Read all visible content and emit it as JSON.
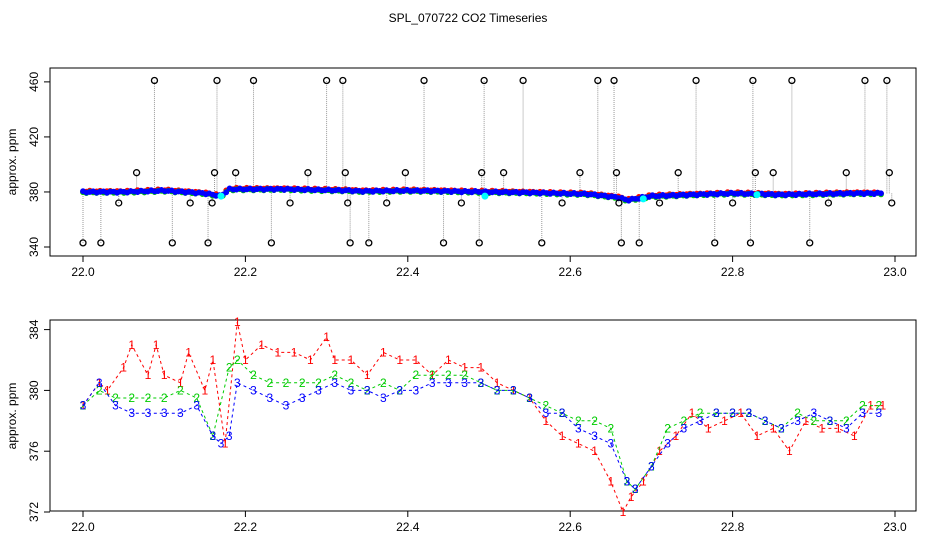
{
  "title": "SPL_070722  CO2 Timeseries",
  "colors": {
    "r1": "#ff0000",
    "r2": "#00cc00",
    "r3": "#0000ff",
    "grey": "#999999",
    "cyan": "#00ffff",
    "text": "#000000"
  },
  "chart_data": [
    {
      "type": "scatter",
      "ylabel": "approx. ppm",
      "xlabel": "",
      "xlim": [
        22.0,
        23.0
      ],
      "ylim": [
        340,
        465
      ],
      "xticks": [
        "22.0",
        "22.2",
        "22.4",
        "22.6",
        "22.8",
        "23.0"
      ],
      "yticks": [
        "340",
        "380",
        "420",
        "460"
      ],
      "grid": false,
      "baseline": {
        "x": [
          22.0,
          22.05,
          22.1,
          22.15,
          22.17,
          22.18,
          22.25,
          22.33,
          22.34,
          22.4,
          22.5,
          22.55,
          22.62,
          22.66,
          22.67,
          22.7,
          22.8,
          22.86,
          22.9,
          22.95,
          22.99
        ],
        "y": [
          380,
          380,
          381,
          379,
          377,
          382,
          382,
          381,
          380.5,
          381,
          380,
          379.5,
          378.5,
          376,
          374,
          377,
          379,
          378,
          378.5,
          379,
          379
        ]
      },
      "spikes": {
        "x": [
          22.0,
          22.022,
          22.044,
          22.066,
          22.088,
          22.11,
          22.132,
          22.154,
          22.159,
          22.162,
          22.165,
          22.188,
          22.21,
          22.232,
          22.255,
          22.277,
          22.3,
          22.32,
          22.323,
          22.326,
          22.329,
          22.352,
          22.374,
          22.397,
          22.42,
          22.444,
          22.466,
          22.488,
          22.491,
          22.494,
          22.518,
          22.542,
          22.565,
          22.59,
          22.612,
          22.634,
          22.654,
          22.657,
          22.66,
          22.663,
          22.685,
          22.71,
          22.733,
          22.755,
          22.778,
          22.8,
          22.822,
          22.825,
          22.828,
          22.85,
          22.873,
          22.895,
          22.918,
          22.94,
          22.963,
          22.99,
          22.993,
          22.996
        ],
        "y": [
          343,
          343,
          372,
          394,
          461,
          343,
          372,
          343,
          372,
          394,
          461,
          394,
          461,
          343,
          372,
          394,
          461,
          461,
          394,
          372,
          343,
          343,
          372,
          394,
          461,
          343,
          372,
          343,
          394,
          461,
          394,
          461,
          343,
          372,
          394,
          461,
          461,
          394,
          372,
          343,
          343,
          372,
          394,
          461,
          343,
          372,
          343,
          461,
          394,
          394,
          461,
          343,
          372,
          394,
          461,
          461,
          394,
          372
        ]
      },
      "cyan_points": {
        "x": [
          22.17,
          22.495,
          22.69,
          22.83
        ],
        "y": [
          377,
          377,
          375,
          378
        ]
      }
    },
    {
      "type": "scatter",
      "ylabel": "approx. ppm",
      "xlabel": "",
      "xlim": [
        22.0,
        23.0
      ],
      "ylim": [
        372,
        384.5
      ],
      "xticks": [
        "22.0",
        "22.2",
        "22.4",
        "22.6",
        "22.8",
        "23.0"
      ],
      "yticks": [
        "372",
        "376",
        "380",
        "384"
      ],
      "grid": false,
      "series": [
        {
          "marker": "1",
          "x": [
            22.0,
            22.02,
            22.03,
            22.05,
            22.06,
            22.08,
            22.09,
            22.1,
            22.12,
            22.13,
            22.15,
            22.16,
            22.175,
            22.19,
            22.2,
            22.22,
            22.24,
            22.26,
            22.28,
            22.3,
            22.31,
            22.33,
            22.35,
            22.37,
            22.39,
            22.41,
            22.43,
            22.45,
            22.47,
            22.49,
            22.51,
            22.53,
            22.55,
            22.57,
            22.59,
            22.61,
            22.63,
            22.65,
            22.665,
            22.675,
            22.69,
            22.71,
            22.73,
            22.75,
            22.77,
            22.79,
            22.81,
            22.83,
            22.85,
            22.87,
            22.89,
            22.91,
            22.93,
            22.95,
            22.97,
            22.985
          ],
          "y": [
            379,
            380.5,
            380,
            381.5,
            383,
            381,
            383,
            381,
            380.5,
            382.5,
            380,
            382,
            376.5,
            384.5,
            382,
            383,
            382.5,
            382.5,
            382,
            383.5,
            382,
            382,
            381,
            382.5,
            382,
            382,
            381,
            382,
            381.5,
            381.5,
            380.5,
            380,
            379.5,
            378,
            377,
            376.5,
            376,
            374,
            372,
            373,
            374,
            376,
            377,
            378.5,
            377.5,
            378,
            378.5,
            377,
            377.5,
            376,
            378,
            377.5,
            377.5,
            377,
            379,
            379
          ]
        },
        {
          "marker": "2",
          "x": [
            22.0,
            22.02,
            22.04,
            22.06,
            22.08,
            22.1,
            22.12,
            22.14,
            22.16,
            22.18,
            22.19,
            22.21,
            22.23,
            22.25,
            22.27,
            22.29,
            22.31,
            22.33,
            22.35,
            22.37,
            22.39,
            22.41,
            22.43,
            22.45,
            22.47,
            22.49,
            22.51,
            22.53,
            22.55,
            22.57,
            22.59,
            22.61,
            22.63,
            22.65,
            22.67,
            22.68,
            22.7,
            22.72,
            22.74,
            22.76,
            22.78,
            22.8,
            22.82,
            22.84,
            22.86,
            22.88,
            22.9,
            22.92,
            22.94,
            22.96,
            22.98
          ],
          "y": [
            379,
            380,
            379.5,
            379.5,
            379.5,
            379.5,
            380,
            379.5,
            377,
            381.5,
            382,
            381,
            380.5,
            380.5,
            380.5,
            380.5,
            381,
            380.5,
            380,
            380.5,
            380,
            381,
            381,
            381,
            381,
            380.5,
            380,
            380,
            379.5,
            379,
            378.5,
            378,
            378,
            377.5,
            374,
            373.5,
            375,
            377.5,
            378,
            378.5,
            378.5,
            378.5,
            378.5,
            378,
            377.5,
            378.5,
            378,
            378,
            378,
            379,
            379
          ]
        },
        {
          "marker": "3",
          "x": [
            22.0,
            22.02,
            22.04,
            22.06,
            22.08,
            22.1,
            22.12,
            22.14,
            22.16,
            22.17,
            22.18,
            22.19,
            22.21,
            22.23,
            22.25,
            22.27,
            22.29,
            22.31,
            22.33,
            22.35,
            22.37,
            22.39,
            22.41,
            22.43,
            22.45,
            22.47,
            22.49,
            22.51,
            22.53,
            22.55,
            22.57,
            22.59,
            22.61,
            22.63,
            22.65,
            22.67,
            22.68,
            22.7,
            22.72,
            22.74,
            22.76,
            22.78,
            22.8,
            22.82,
            22.84,
            22.86,
            22.88,
            22.9,
            22.92,
            22.94,
            22.96,
            22.98
          ],
          "y": [
            379,
            380.5,
            379,
            378.5,
            378.5,
            378.5,
            378.5,
            379,
            377,
            376.5,
            377,
            380.5,
            380,
            379.5,
            379,
            379.5,
            380,
            380.5,
            380,
            380,
            379.5,
            380,
            380,
            380.5,
            380.5,
            380.5,
            380.5,
            380,
            380,
            379.5,
            378.5,
            378.5,
            377.5,
            377,
            376.5,
            374,
            373.5,
            375,
            376.5,
            377.5,
            378,
            378.5,
            378.5,
            378.5,
            378,
            377.5,
            378,
            378.5,
            378,
            377.5,
            378.5,
            378.5
          ]
        }
      ]
    }
  ]
}
